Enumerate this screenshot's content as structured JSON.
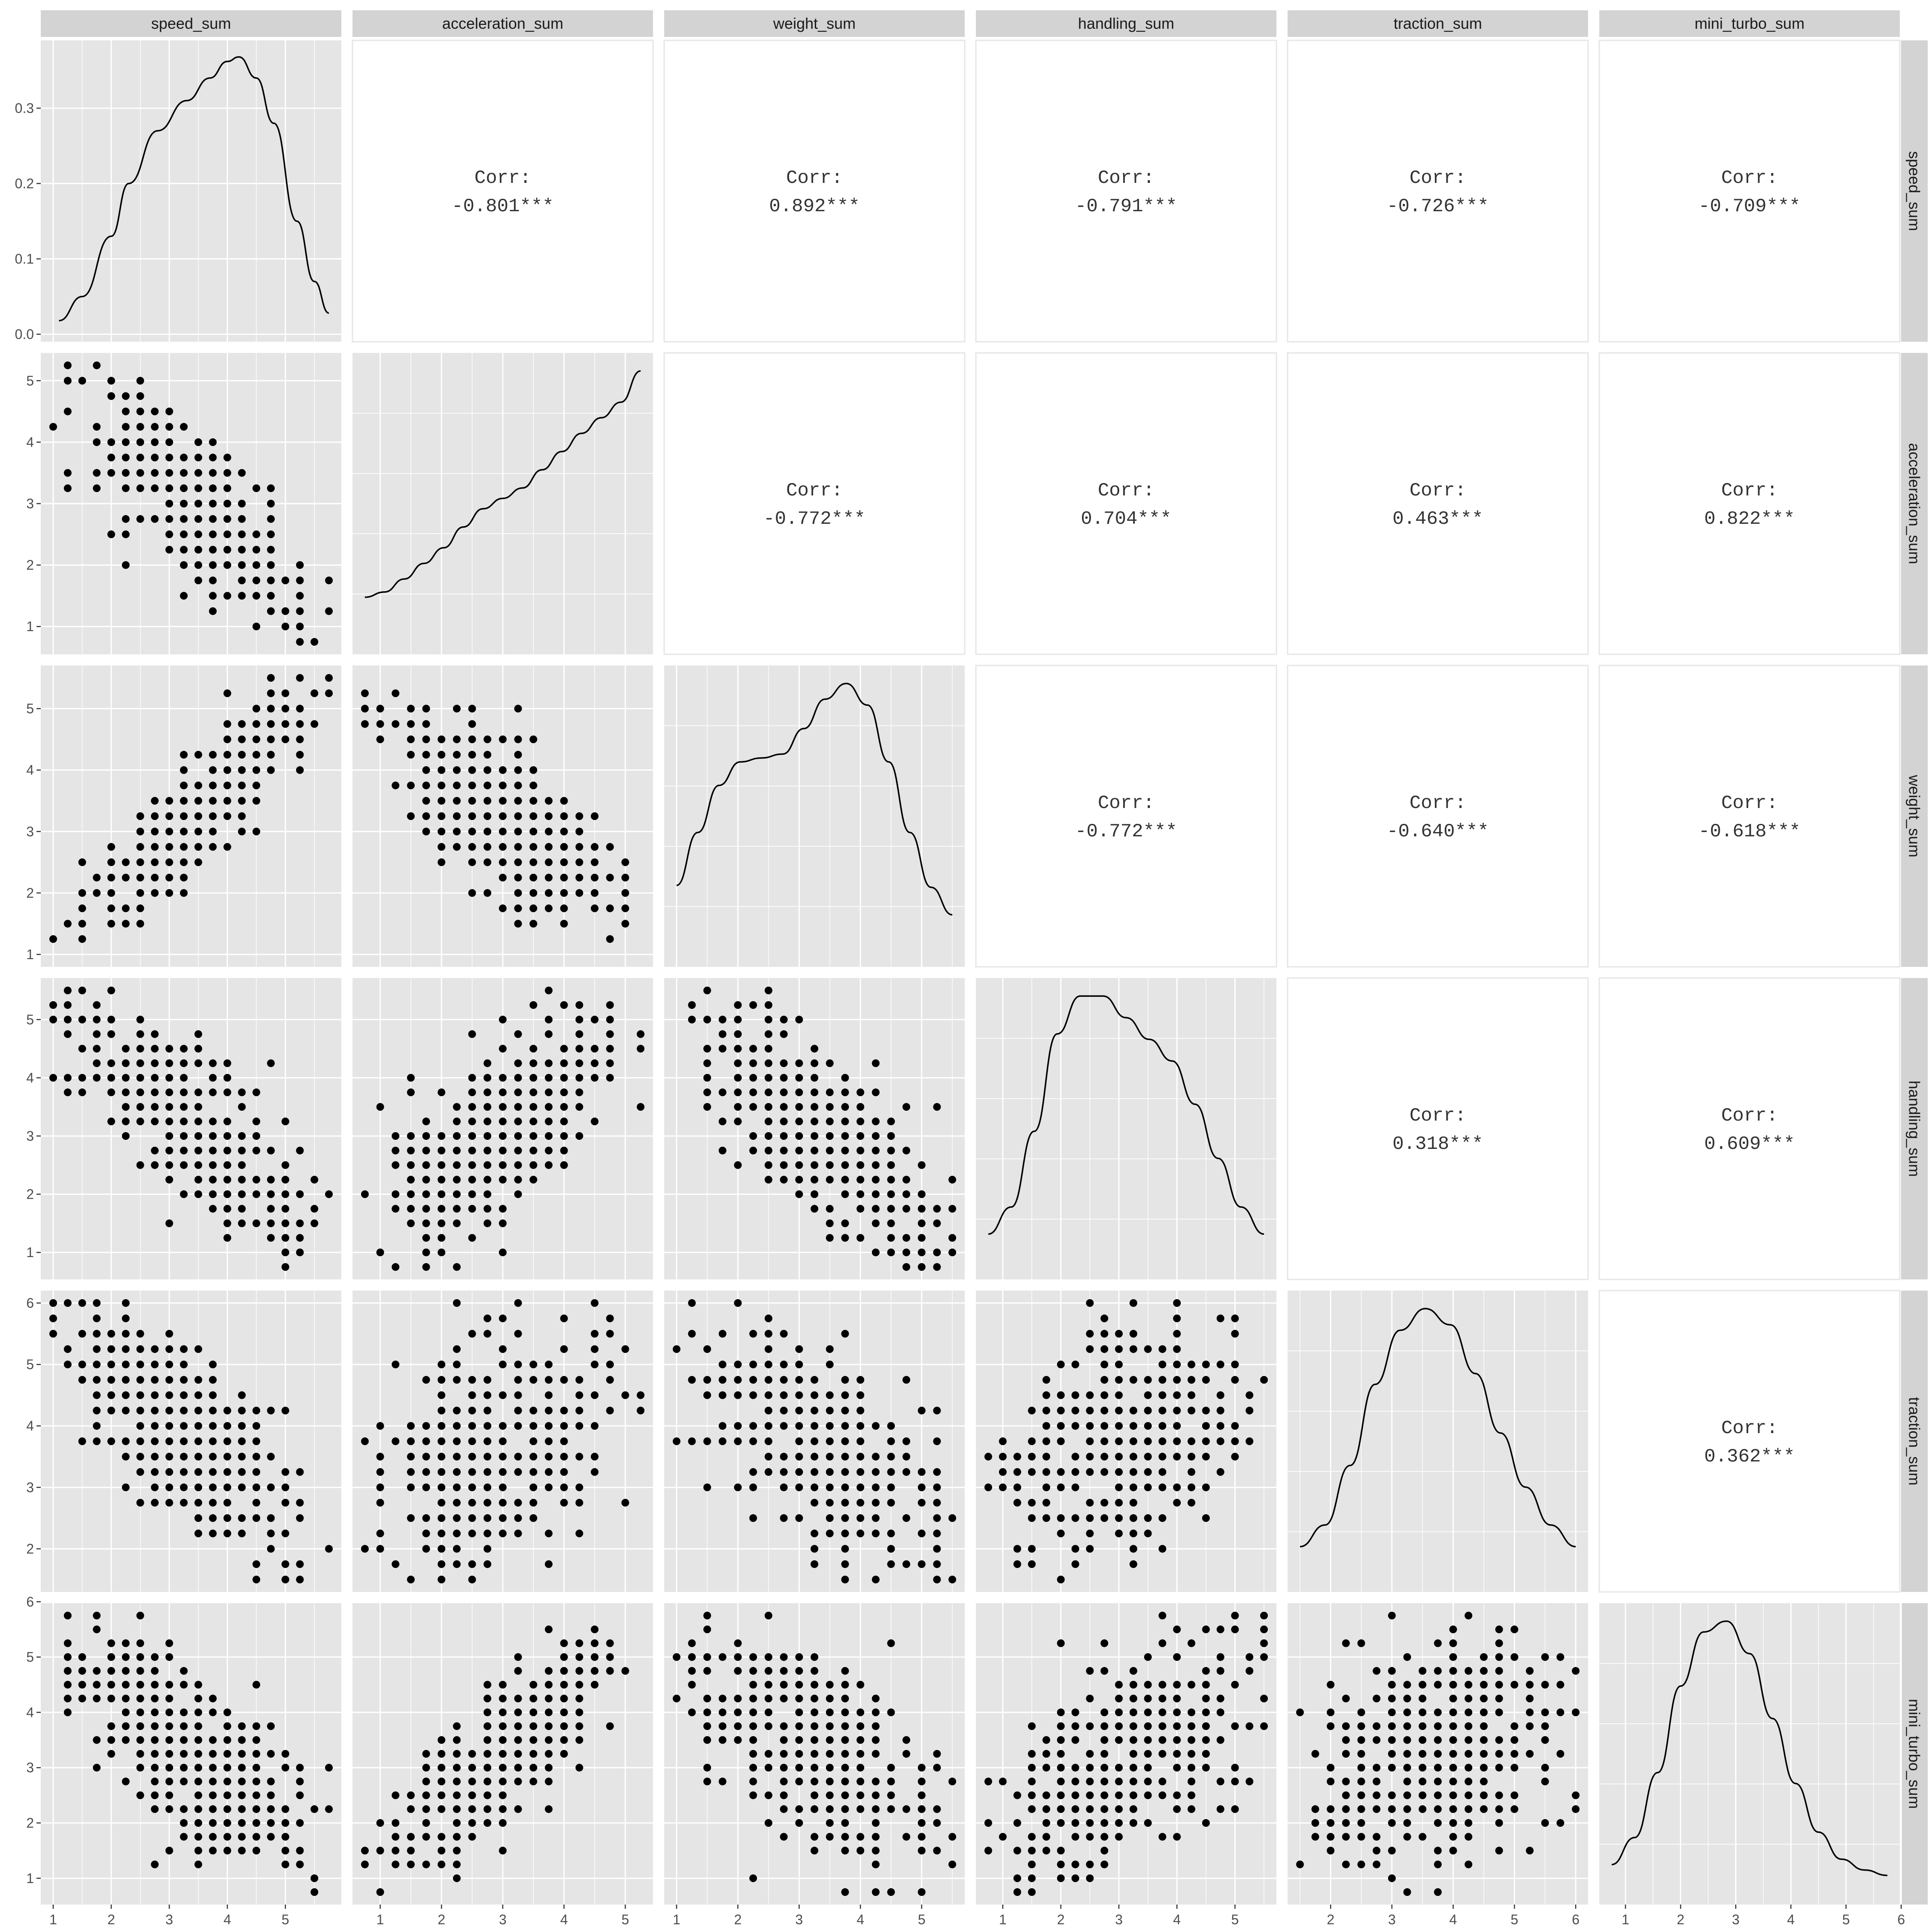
{
  "variables": [
    "speed_sum",
    "acceleration_sum",
    "weight_sum",
    "handling_sum",
    "traction_sum",
    "mini_turbo_sum"
  ],
  "colors": {
    "panel_background": "#e5e5e5",
    "grid": "#ffffff",
    "strip": "#d3d3d3",
    "points": "#000000",
    "density_line": "#000000",
    "text": "#1a1a1a",
    "tick_text": "#4d4d4d",
    "upper_panel_border": "#e6e6e6"
  },
  "chart_data": {
    "type": "scatter-matrix",
    "variables": [
      "speed_sum",
      "acceleration_sum",
      "weight_sum",
      "handling_sum",
      "traction_sum",
      "mini_turbo_sum"
    ],
    "ranges": {
      "speed_sum": [
        1.0,
        5.75
      ],
      "acceleration_sum": [
        0.75,
        5.25
      ],
      "weight_sum": [
        1.0,
        5.5
      ],
      "handling_sum": [
        0.75,
        5.5
      ],
      "traction_sum": [
        1.5,
        6.0
      ],
      "mini_turbo_sum": [
        0.75,
        5.75
      ]
    },
    "axis_ticks": {
      "speed_sum": [
        1,
        2,
        3,
        4,
        5
      ],
      "acceleration_sum": [
        1,
        2,
        3,
        4,
        5
      ],
      "weight_sum": [
        1,
        2,
        3,
        4,
        5
      ],
      "handling_sum": [
        1,
        2,
        3,
        4,
        5
      ],
      "traction_sum": [
        2,
        3,
        4,
        5,
        6
      ],
      "mini_turbo_sum": [
        1,
        2,
        3,
        4,
        5,
        6
      ]
    },
    "density_y_ticks": [
      0.0,
      0.1,
      0.2,
      0.3
    ],
    "density_y_labels": [
      "0.0",
      "0.1",
      "0.2",
      "0.3"
    ],
    "density_ylim": [
      -0.01,
      0.39
    ],
    "speed_density": [
      [
        1.1,
        0.018
      ],
      [
        1.5,
        0.05
      ],
      [
        2.0,
        0.13
      ],
      [
        2.3,
        0.2
      ],
      [
        2.8,
        0.27
      ],
      [
        3.3,
        0.31
      ],
      [
        3.7,
        0.34
      ],
      [
        4.0,
        0.362
      ],
      [
        4.2,
        0.368
      ],
      [
        4.5,
        0.34
      ],
      [
        4.8,
        0.28
      ],
      [
        5.2,
        0.15
      ],
      [
        5.5,
        0.07
      ],
      [
        5.75,
        0.028
      ]
    ],
    "densities": {
      "acceleration_sum": [
        0.85,
        0.95,
        1.2,
        1.5,
        1.8,
        2.2,
        2.55,
        2.75,
        2.95,
        3.3,
        3.65,
        4.0,
        4.3,
        4.6,
        5.2
      ],
      "weight_sum": [
        0.35,
        0.62,
        0.86,
        0.98,
        1.0,
        1.02,
        1.15,
        1.3,
        1.38,
        1.27,
        0.98,
        0.62,
        0.34,
        0.2
      ],
      "handling_sum": [
        0.12,
        0.22,
        0.5,
        0.86,
        1.0,
        1.0,
        0.92,
        0.84,
        0.76,
        0.6,
        0.4,
        0.22,
        0.12
      ],
      "traction_sum": [
        0.12,
        0.2,
        0.42,
        0.72,
        0.92,
        1.0,
        0.94,
        0.76,
        0.54,
        0.34,
        0.2,
        0.12
      ],
      "mini_turbo_sum": [
        0.1,
        0.2,
        0.44,
        0.76,
        0.96,
        1.0,
        0.88,
        0.64,
        0.4,
        0.22,
        0.12,
        0.08,
        0.06
      ]
    },
    "correlations": [
      {
        "row": "speed_sum",
        "col": "acceleration_sum",
        "label": "Corr:",
        "value": "-0.801***"
      },
      {
        "row": "speed_sum",
        "col": "weight_sum",
        "label": "Corr:",
        "value": "0.892***"
      },
      {
        "row": "speed_sum",
        "col": "handling_sum",
        "label": "Corr:",
        "value": "-0.791***"
      },
      {
        "row": "speed_sum",
        "col": "traction_sum",
        "label": "Corr:",
        "value": "-0.726***"
      },
      {
        "row": "speed_sum",
        "col": "mini_turbo_sum",
        "label": "Corr:",
        "value": "-0.709***"
      },
      {
        "row": "acceleration_sum",
        "col": "weight_sum",
        "label": "Corr:",
        "value": "-0.772***"
      },
      {
        "row": "acceleration_sum",
        "col": "handling_sum",
        "label": "Corr:",
        "value": "0.704***"
      },
      {
        "row": "acceleration_sum",
        "col": "traction_sum",
        "label": "Corr:",
        "value": "0.463***"
      },
      {
        "row": "acceleration_sum",
        "col": "mini_turbo_sum",
        "label": "Corr:",
        "value": "0.822***"
      },
      {
        "row": "weight_sum",
        "col": "handling_sum",
        "label": "Corr:",
        "value": "-0.772***"
      },
      {
        "row": "weight_sum",
        "col": "traction_sum",
        "label": "Corr:",
        "value": "-0.640***"
      },
      {
        "row": "weight_sum",
        "col": "mini_turbo_sum",
        "label": "Corr:",
        "value": "-0.618***"
      },
      {
        "row": "handling_sum",
        "col": "traction_sum",
        "label": "Corr:",
        "value": "0.318***"
      },
      {
        "row": "handling_sum",
        "col": "mini_turbo_sum",
        "label": "Corr:",
        "value": "0.609***"
      },
      {
        "row": "traction_sum",
        "col": "mini_turbo_sum",
        "label": "Corr:",
        "value": "0.362***"
      }
    ],
    "grid": "on",
    "point_style": "filled circle"
  }
}
